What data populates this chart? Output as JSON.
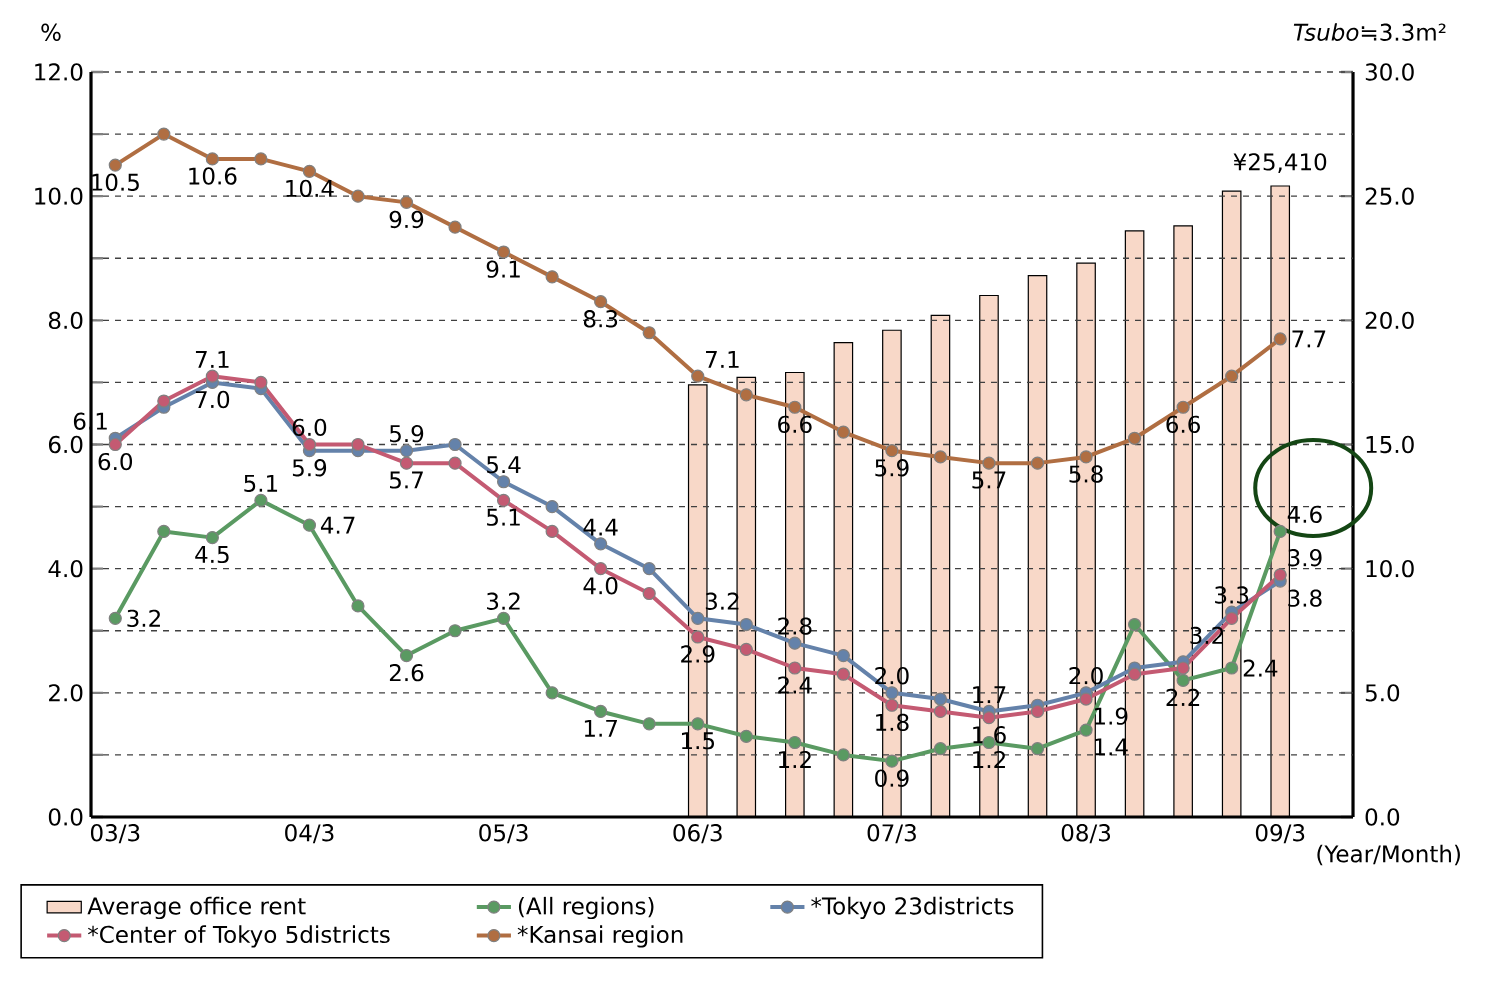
{
  "chart_data": {
    "type": "line",
    "ylabel": "%",
    "y2label": "*Tsubo*≒3.3m²",
    "xlabel": "(Year/Month)",
    "categories": [
      "03/3",
      null,
      null,
      null,
      "04/3",
      null,
      null,
      null,
      "05/3",
      null,
      null,
      null,
      "06/3",
      null,
      null,
      null,
      "07/3",
      null,
      null,
      null,
      "08/3",
      null,
      null,
      null,
      "09/3"
    ],
    "series": [
      {
        "name": "Average office rent",
        "type": "bar",
        "axis": "y2",
        "color": "#f8d8c8",
        "values": [
          null,
          null,
          null,
          null,
          null,
          null,
          null,
          null,
          null,
          null,
          null,
          null,
          17.4,
          17.7,
          17.9,
          19.1,
          19.6,
          20.2,
          21.0,
          21.8,
          22.3,
          23.6,
          23.8,
          25.2,
          25.41
        ]
      },
      {
        "name": "(All regions)",
        "color": "#5a9a62",
        "values": [
          3.2,
          4.6,
          4.5,
          5.1,
          4.7,
          3.4,
          2.6,
          3.0,
          3.2,
          2.0,
          1.7,
          1.5,
          1.5,
          1.3,
          1.2,
          1.0,
          0.9,
          1.1,
          1.2,
          1.1,
          1.4,
          3.1,
          2.2,
          2.4,
          4.6
        ],
        "value_labels": [
          "3.2",
          null,
          "4.5",
          "5.1",
          "4.7",
          null,
          "2.6",
          null,
          "3.2",
          null,
          "1.7",
          null,
          "1.5",
          null,
          "1.2",
          null,
          "0.9",
          null,
          "1.2",
          null,
          "1.4",
          null,
          "2.2",
          "2.4",
          "4.6"
        ]
      },
      {
        "name": "*Tokyo 23districts",
        "color": "#6482aa",
        "values": [
          6.1,
          6.6,
          7.0,
          6.9,
          5.9,
          5.9,
          5.9,
          6.0,
          5.4,
          5.0,
          4.4,
          4.0,
          3.2,
          3.1,
          2.8,
          2.6,
          2.0,
          1.9,
          1.7,
          1.8,
          2.0,
          2.4,
          2.5,
          3.3,
          3.8
        ],
        "value_labels": [
          "6.1",
          null,
          "7.0",
          null,
          "5.9",
          null,
          "5.9",
          null,
          "5.4",
          null,
          "4.4",
          null,
          "3.2",
          null,
          "2.8",
          null,
          "2.0",
          null,
          "1.7",
          null,
          "2.0",
          null,
          null,
          "3.3",
          "3.8"
        ]
      },
      {
        "name": "*Center of Tokyo 5districts",
        "color": "#c45a72",
        "values": [
          6.0,
          6.7,
          7.1,
          7.0,
          6.0,
          6.0,
          5.7,
          5.7,
          5.1,
          4.6,
          4.0,
          3.6,
          2.9,
          2.7,
          2.4,
          2.3,
          1.8,
          1.7,
          1.6,
          1.7,
          1.9,
          2.3,
          2.4,
          3.2,
          3.9
        ],
        "value_labels": [
          "6.0",
          null,
          "7.1",
          null,
          "6.0",
          null,
          "5.7",
          null,
          "5.1",
          null,
          "4.0",
          null,
          "2.9",
          null,
          "2.4",
          null,
          "1.8",
          null,
          "1.6",
          null,
          "1.9",
          null,
          null,
          "3.2",
          "3.9"
        ]
      },
      {
        "name": "*Kansai region",
        "color": "#b06e42",
        "values": [
          10.5,
          11.0,
          10.6,
          10.6,
          10.4,
          10.0,
          9.9,
          9.5,
          9.1,
          8.7,
          8.3,
          7.8,
          7.1,
          6.8,
          6.6,
          6.2,
          5.9,
          5.8,
          5.7,
          5.7,
          5.8,
          6.1,
          6.6,
          7.1,
          7.7
        ],
        "value_labels": [
          "10.5",
          null,
          "10.6",
          null,
          "10.4",
          null,
          "9.9",
          null,
          "9.1",
          null,
          "8.3",
          null,
          "7.1",
          null,
          "6.6",
          null,
          "5.9",
          null,
          "5.7",
          null,
          "5.8",
          null,
          "6.6",
          null,
          "7.7"
        ]
      }
    ],
    "ylim": [
      0,
      12
    ],
    "yticks": [
      {
        "value": 0,
        "label": "0.0"
      },
      {
        "value": 1,
        "label": null
      },
      {
        "value": 2,
        "label": "2.0"
      },
      {
        "value": 3,
        "label": null
      },
      {
        "value": 4,
        "label": "4.0"
      },
      {
        "value": 5,
        "label": null
      },
      {
        "value": 6,
        "label": "6.0"
      },
      {
        "value": 7,
        "label": null
      },
      {
        "value": 8,
        "label": "8.0"
      },
      {
        "value": 9,
        "label": null
      },
      {
        "value": 10,
        "label": "10.0"
      },
      {
        "value": 11,
        "label": null
      },
      {
        "value": 12,
        "label": "12.0"
      }
    ],
    "y2lim": [
      0,
      30
    ],
    "y2ticks": [
      {
        "value": 0,
        "label": "0.0"
      },
      {
        "value": 5,
        "label": "5.0"
      },
      {
        "value": 10,
        "label": "10.0"
      },
      {
        "value": 15,
        "label": "15.0"
      },
      {
        "value": 20,
        "label": "20.0"
      },
      {
        "value": 25,
        "label": "25.0"
      },
      {
        "value": 30,
        "label": "30.0"
      }
    ],
    "annotations": [
      "¥25,410"
    ],
    "grid": "y",
    "legend": "bottom",
    "marker": "circle",
    "line_style": "solid"
  }
}
